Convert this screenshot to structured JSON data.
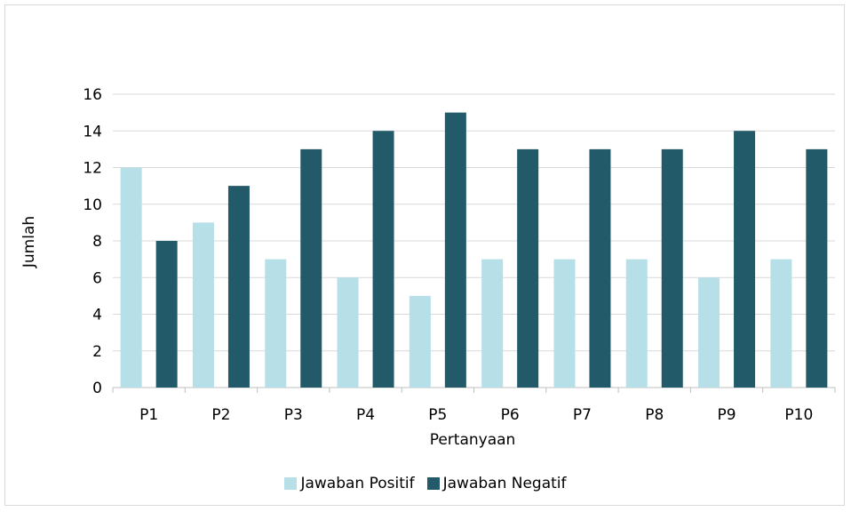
{
  "chart_data": {
    "type": "bar",
    "categories": [
      "P1",
      "P2",
      "P3",
      "P4",
      "P5",
      "P6",
      "P7",
      "P8",
      "P9",
      "P10"
    ],
    "series": [
      {
        "name": "Jawaban Positif",
        "color": "#b6dfe8",
        "values": [
          12,
          9,
          7,
          6,
          5,
          7,
          7,
          7,
          6,
          7
        ]
      },
      {
        "name": "Jawaban Negatif",
        "color": "#235a69",
        "values": [
          8,
          11,
          13,
          14,
          15,
          13,
          13,
          13,
          14,
          13
        ]
      }
    ],
    "title": "",
    "xlabel": "Pertanyaan",
    "ylabel": "Jumlah",
    "ylim": [
      0,
      16
    ],
    "yticks": [
      0,
      2,
      4,
      6,
      8,
      10,
      12,
      14,
      16
    ],
    "grid": true,
    "legend_position": "bottom"
  }
}
